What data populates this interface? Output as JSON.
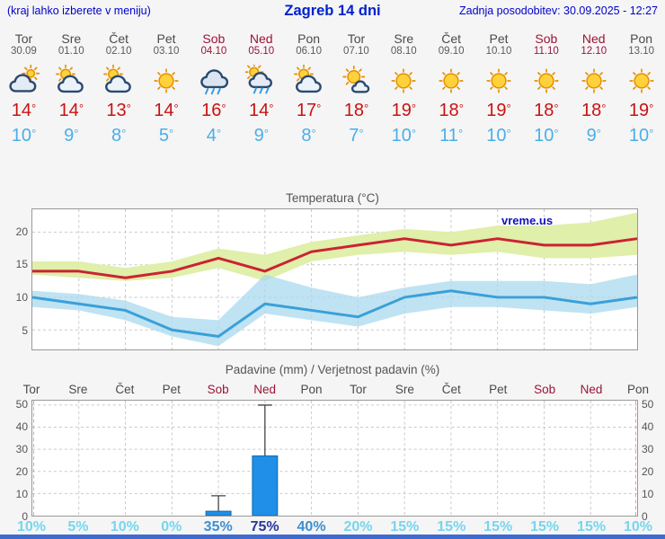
{
  "header": {
    "left_note": "(kraj lahko izberete v meniju)",
    "title": "Zagreb 14 dni",
    "updated_label": "Zadnja posodobitev: 30.09.2025 - 12:27"
  },
  "branding": {
    "watermark": "vreme.us"
  },
  "colors": {
    "header_blue": "#0000cc",
    "weekend_red": "#9c1336",
    "tmax_text": "#cc1111",
    "tmin_text": "#4aaee8",
    "tmax_line": "#cc2233",
    "tmin_line": "#3aa0d8",
    "tmax_band": "#e0efa9",
    "tmin_band": "#a9d9ef",
    "bar_fill": "#1f8fe8",
    "prob_light": "#76d6ee",
    "prob_medium": "#3e8fd0",
    "prob_dark": "#28359c"
  },
  "forecast": {
    "days": [
      {
        "name": "Tor",
        "date": "30.09",
        "weekend": false,
        "icon": "cloudy",
        "tmax": "14°",
        "tmin": "10°"
      },
      {
        "name": "Sre",
        "date": "01.10",
        "weekend": false,
        "icon": "partly-cloudy",
        "tmax": "14°",
        "tmin": "9°"
      },
      {
        "name": "Čet",
        "date": "02.10",
        "weekend": false,
        "icon": "partly-cloudy",
        "tmax": "13°",
        "tmin": "8°"
      },
      {
        "name": "Pet",
        "date": "03.10",
        "weekend": false,
        "icon": "sunny",
        "tmax": "14°",
        "tmin": "5°"
      },
      {
        "name": "Sob",
        "date": "04.10",
        "weekend": true,
        "icon": "rain",
        "tmax": "16°",
        "tmin": "4°"
      },
      {
        "name": "Ned",
        "date": "05.10",
        "weekend": true,
        "icon": "shower-sun",
        "tmax": "14°",
        "tmin": "9°"
      },
      {
        "name": "Pon",
        "date": "06.10",
        "weekend": false,
        "icon": "partly-cloudy",
        "tmax": "17°",
        "tmin": "8°"
      },
      {
        "name": "Tor",
        "date": "07.10",
        "weekend": false,
        "icon": "mostly-sunny",
        "tmax": "18°",
        "tmin": "7°"
      },
      {
        "name": "Sre",
        "date": "08.10",
        "weekend": false,
        "icon": "sunny",
        "tmax": "19°",
        "tmin": "10°"
      },
      {
        "name": "Čet",
        "date": "09.10",
        "weekend": false,
        "icon": "sunny",
        "tmax": "18°",
        "tmin": "11°"
      },
      {
        "name": "Pet",
        "date": "10.10",
        "weekend": false,
        "icon": "sunny",
        "tmax": "19°",
        "tmin": "10°"
      },
      {
        "name": "Sob",
        "date": "11.10",
        "weekend": true,
        "icon": "sunny",
        "tmax": "18°",
        "tmin": "10°"
      },
      {
        "name": "Ned",
        "date": "12.10",
        "weekend": true,
        "icon": "sunny",
        "tmax": "18°",
        "tmin": "9°"
      },
      {
        "name": "Pon",
        "date": "13.10",
        "weekend": false,
        "icon": "sunny",
        "tmax": "19°",
        "tmin": "10°"
      }
    ]
  },
  "chart_data": [
    {
      "type": "line",
      "title": "Temperatura (°C)",
      "x_labels": [
        "Tor 30.09",
        "Sre 01.10",
        "Čet 02.10",
        "Pet 03.10",
        "Sob 04.10",
        "Ned 05.10",
        "Pon 06.10",
        "Tor 07.10",
        "Sre 08.10",
        "Čet 09.10",
        "Pet 10.10",
        "Sob 11.10",
        "Ned 12.10",
        "Pon 13.10"
      ],
      "ylim": [
        2,
        23.5
      ],
      "yticks": [
        5,
        10,
        15,
        20
      ],
      "grid": true,
      "legend": "none",
      "watermark": "vreme.us",
      "series": [
        {
          "name": "temp-max",
          "color": "#cc2233",
          "values": [
            14,
            14,
            13,
            14,
            16,
            14,
            17,
            18,
            19,
            18,
            19,
            18,
            18,
            19
          ]
        },
        {
          "name": "temp-min",
          "color": "#3aa0d8",
          "values": [
            10,
            9,
            8,
            5,
            4,
            9,
            8,
            7,
            10,
            11,
            10,
            10,
            9,
            10
          ]
        }
      ],
      "bands": [
        {
          "name": "temp-max-range",
          "color": "#e0efa9",
          "opacity": 1,
          "upper": [
            15.5,
            15.5,
            14.5,
            15.5,
            17.5,
            16.5,
            18.5,
            19.5,
            20.5,
            20,
            21,
            21,
            21.5,
            23
          ],
          "lower": [
            13.5,
            13,
            12.5,
            13,
            14.5,
            12.5,
            15.5,
            16.5,
            17,
            16.5,
            17,
            16,
            16,
            16.5
          ]
        },
        {
          "name": "temp-min-range",
          "color": "#a9d9ef",
          "opacity": 0.75,
          "upper": [
            11,
            10.5,
            9.5,
            7,
            6.5,
            13.5,
            11.5,
            10,
            11.5,
            12.5,
            12.5,
            12.5,
            12,
            13.5
          ],
          "lower": [
            8.5,
            8,
            6.5,
            4,
            2.5,
            7.5,
            6.5,
            5.5,
            7.5,
            8.5,
            8.5,
            8,
            7.5,
            8.5
          ]
        }
      ]
    },
    {
      "type": "bar",
      "title": "Padavine (mm) / Verjetnost padavin (%)",
      "categories": [
        "Tor",
        "Sre",
        "Čet",
        "Pet",
        "Sob",
        "Ned",
        "Pon",
        "Tor",
        "Sre",
        "Čet",
        "Pet",
        "Sob",
        "Ned",
        "Pon"
      ],
      "weekend_flags": [
        false,
        false,
        false,
        false,
        true,
        true,
        false,
        false,
        false,
        false,
        false,
        true,
        true,
        false
      ],
      "ylim": [
        0,
        52
      ],
      "yticks": [
        0,
        10,
        20,
        30,
        40,
        50
      ],
      "bar_color": "#1f8fe8",
      "precip_mm": [
        0,
        0,
        0,
        0,
        2,
        27,
        0,
        0,
        0,
        0,
        0,
        0,
        0,
        0
      ],
      "precip_max_mm": [
        0,
        0,
        0,
        0,
        9,
        50,
        0,
        0,
        0,
        0,
        0,
        0,
        0,
        0
      ],
      "probabilities": [
        {
          "label": "10%",
          "tone": "light"
        },
        {
          "label": "5%",
          "tone": "light"
        },
        {
          "label": "10%",
          "tone": "light"
        },
        {
          "label": "0%",
          "tone": "light"
        },
        {
          "label": "35%",
          "tone": "medium"
        },
        {
          "label": "75%",
          "tone": "dark"
        },
        {
          "label": "40%",
          "tone": "medium"
        },
        {
          "label": "20%",
          "tone": "light"
        },
        {
          "label": "15%",
          "tone": "light"
        },
        {
          "label": "15%",
          "tone": "light"
        },
        {
          "label": "15%",
          "tone": "light"
        },
        {
          "label": "15%",
          "tone": "light"
        },
        {
          "label": "15%",
          "tone": "light"
        },
        {
          "label": "10%",
          "tone": "light"
        }
      ]
    }
  ]
}
